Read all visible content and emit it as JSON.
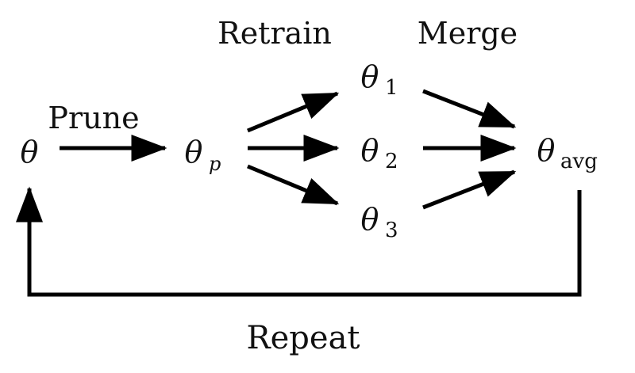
{
  "nodes": {
    "theta": {
      "symbol": "θ",
      "subscript": ""
    },
    "theta_p": {
      "symbol": "θ",
      "subscript": "p"
    },
    "theta_1": {
      "symbol": "θ",
      "subscript": "1"
    },
    "theta_2": {
      "symbol": "θ",
      "subscript": "2"
    },
    "theta_3": {
      "symbol": "θ",
      "subscript": "3"
    },
    "theta_avg": {
      "symbol": "θ",
      "subscript": "avg"
    }
  },
  "labels": {
    "prune": "Prune",
    "retrain": "Retrain",
    "merge": "Merge",
    "repeat": "Repeat"
  },
  "colors": {
    "ink": "#000000",
    "background": "#ffffff"
  }
}
